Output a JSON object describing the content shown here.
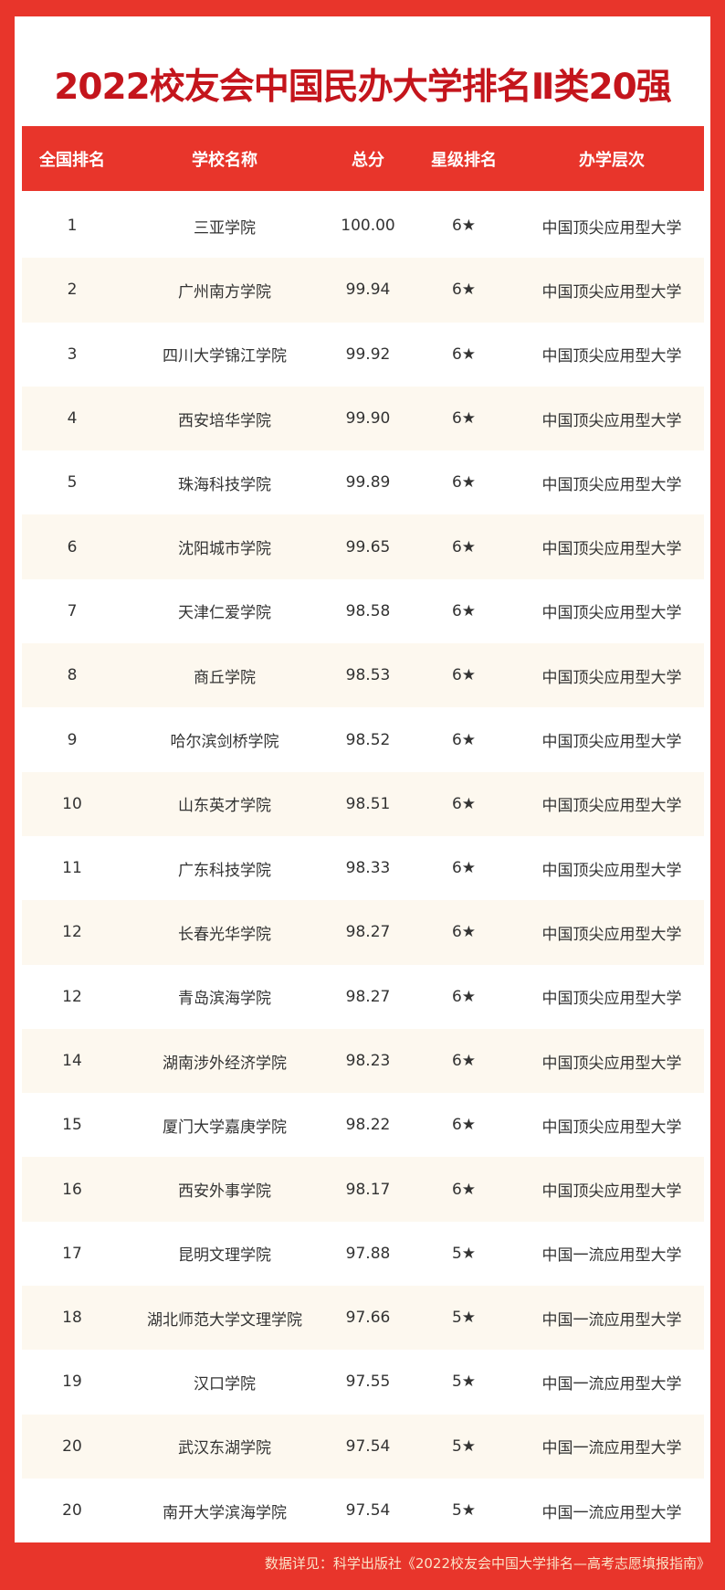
{
  "title": "2022校友会中国民办大学排名Ⅱ类20强",
  "colors": {
    "accent": "#e8352b",
    "title": "#c4151c",
    "alt_row": "#fdf8ef"
  },
  "columns": [
    "全国排名",
    "学校名称",
    "总分",
    "星级排名",
    "办学层次"
  ],
  "rows": [
    [
      "1",
      "三亚学院",
      "100.00",
      "6★",
      "中国顶尖应用型大学"
    ],
    [
      "2",
      "广州南方学院",
      "99.94",
      "6★",
      "中国顶尖应用型大学"
    ],
    [
      "3",
      "四川大学锦江学院",
      "99.92",
      "6★",
      "中国顶尖应用型大学"
    ],
    [
      "4",
      "西安培华学院",
      "99.90",
      "6★",
      "中国顶尖应用型大学"
    ],
    [
      "5",
      "珠海科技学院",
      "99.89",
      "6★",
      "中国顶尖应用型大学"
    ],
    [
      "6",
      "沈阳城市学院",
      "99.65",
      "6★",
      "中国顶尖应用型大学"
    ],
    [
      "7",
      "天津仁爱学院",
      "98.58",
      "6★",
      "中国顶尖应用型大学"
    ],
    [
      "8",
      "商丘学院",
      "98.53",
      "6★",
      "中国顶尖应用型大学"
    ],
    [
      "9",
      "哈尔滨剑桥学院",
      "98.52",
      "6★",
      "中国顶尖应用型大学"
    ],
    [
      "10",
      "山东英才学院",
      "98.51",
      "6★",
      "中国顶尖应用型大学"
    ],
    [
      "11",
      "广东科技学院",
      "98.33",
      "6★",
      "中国顶尖应用型大学"
    ],
    [
      "12",
      "长春光华学院",
      "98.27",
      "6★",
      "中国顶尖应用型大学"
    ],
    [
      "12",
      "青岛滨海学院",
      "98.27",
      "6★",
      "中国顶尖应用型大学"
    ],
    [
      "14",
      "湖南涉外经济学院",
      "98.23",
      "6★",
      "中国顶尖应用型大学"
    ],
    [
      "15",
      "厦门大学嘉庚学院",
      "98.22",
      "6★",
      "中国顶尖应用型大学"
    ],
    [
      "16",
      "西安外事学院",
      "98.17",
      "6★",
      "中国顶尖应用型大学"
    ],
    [
      "17",
      "昆明文理学院",
      "97.88",
      "5★",
      "中国一流应用型大学"
    ],
    [
      "18",
      "湖北师范大学文理学院",
      "97.66",
      "5★",
      "中国一流应用型大学"
    ],
    [
      "19",
      "汉口学院",
      "97.55",
      "5★",
      "中国一流应用型大学"
    ],
    [
      "20",
      "武汉东湖学院",
      "97.54",
      "5★",
      "中国一流应用型大学"
    ],
    [
      "20",
      "南开大学滨海学院",
      "97.54",
      "5★",
      "中国一流应用型大学"
    ]
  ],
  "footer": "数据详见：科学出版社《2022校友会中国大学排名—高考志愿填报指南》"
}
